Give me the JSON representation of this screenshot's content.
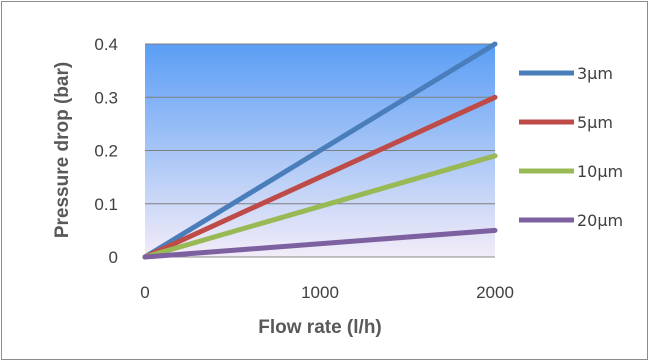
{
  "chart_data": {
    "type": "line",
    "xlabel": "Flow rate (l/h)",
    "ylabel": "Pressure drop (bar)",
    "xlim": [
      0,
      2000
    ],
    "ylim": [
      0,
      0.4
    ],
    "x_ticks": [
      "0",
      "1000",
      "2000"
    ],
    "y_ticks": [
      "0",
      "0.1",
      "0.2",
      "0.3",
      "0.4"
    ],
    "grid": "horizontal",
    "legend_position": "right",
    "x": [
      0,
      2000
    ],
    "series": [
      {
        "name": "3µm",
        "values": [
          0,
          0.4
        ],
        "color": "#4a7ebb"
      },
      {
        "name": "5µm",
        "values": [
          0,
          0.3
        ],
        "color": "#be4b48"
      },
      {
        "name": "10µm",
        "values": [
          0,
          0.19
        ],
        "color": "#98b954"
      },
      {
        "name": "20µm",
        "values": [
          0,
          0.05
        ],
        "color": "#7d60a0"
      }
    ],
    "plot_background": [
      "#5a9ef5",
      "#f3ecf8"
    ]
  }
}
